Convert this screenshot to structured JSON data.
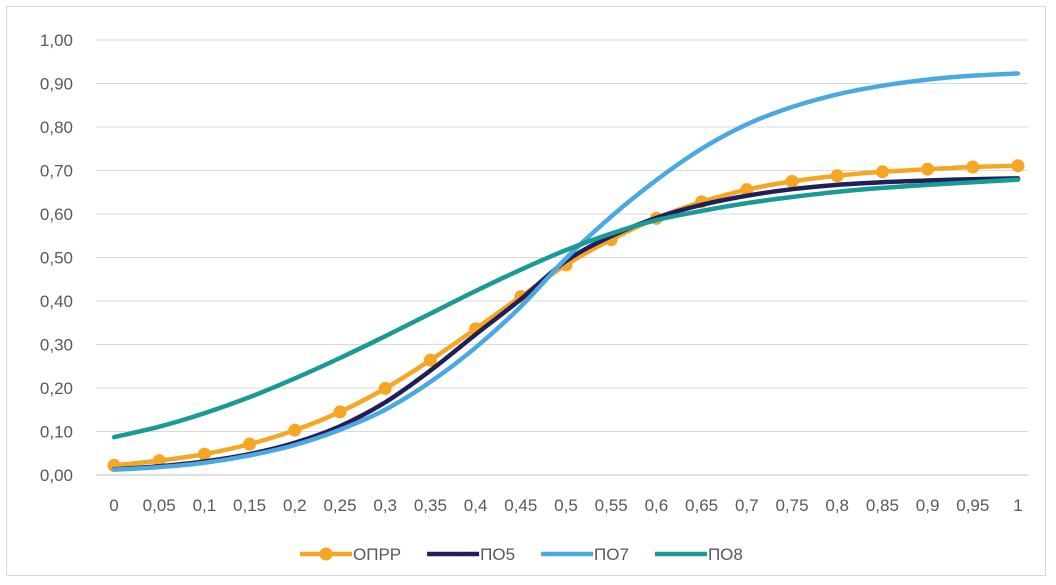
{
  "chart_data": {
    "type": "line",
    "title": "",
    "xlabel": "",
    "ylabel": "",
    "categories": [
      "0",
      "0,05",
      "0,1",
      "0,15",
      "0,2",
      "0,25",
      "0,3",
      "0,35",
      "0,4",
      "0,45",
      "0,5",
      "0,55",
      "0,6",
      "0,65",
      "0,7",
      "0,75",
      "0,8",
      "0,85",
      "0,9",
      "0,95",
      "1"
    ],
    "ylim": [
      0,
      1
    ],
    "y_ticks": [
      "0,00",
      "0,10",
      "0,20",
      "0,30",
      "0,40",
      "0,50",
      "0,60",
      "0,70",
      "0,80",
      "0,90",
      "1,00"
    ],
    "grid": true,
    "legend_position": "bottom",
    "series": [
      {
        "name": "ОПРР",
        "color": "#f5a623",
        "markers": true,
        "values": [
          0.022,
          0.033,
          0.048,
          0.071,
          0.103,
          0.145,
          0.199,
          0.264,
          0.336,
          0.41,
          0.483,
          0.541,
          0.59,
          0.628,
          0.656,
          0.675,
          0.688,
          0.697,
          0.703,
          0.708,
          0.711
        ]
      },
      {
        "name": "ПО5",
        "color": "#201f5a",
        "markers": false,
        "values": [
          0.013,
          0.02,
          0.031,
          0.048,
          0.074,
          0.112,
          0.167,
          0.24,
          0.323,
          0.404,
          0.492,
          0.549,
          0.591,
          0.621,
          0.642,
          0.657,
          0.667,
          0.673,
          0.677,
          0.68,
          0.682
        ]
      },
      {
        "name": "ПО7",
        "color": "#4aa9e0",
        "markers": false,
        "values": [
          0.012,
          0.018,
          0.028,
          0.045,
          0.069,
          0.104,
          0.15,
          0.214,
          0.293,
          0.387,
          0.498,
          0.594,
          0.678,
          0.75,
          0.806,
          0.846,
          0.875,
          0.895,
          0.909,
          0.918,
          0.923
        ]
      },
      {
        "name": "ПО8",
        "color": "#1a9a96",
        "markers": false,
        "values": [
          0.087,
          0.111,
          0.142,
          0.179,
          0.222,
          0.269,
          0.319,
          0.371,
          0.423,
          0.472,
          0.517,
          0.555,
          0.586,
          0.607,
          0.625,
          0.639,
          0.651,
          0.66,
          0.667,
          0.673,
          0.679
        ]
      }
    ]
  }
}
